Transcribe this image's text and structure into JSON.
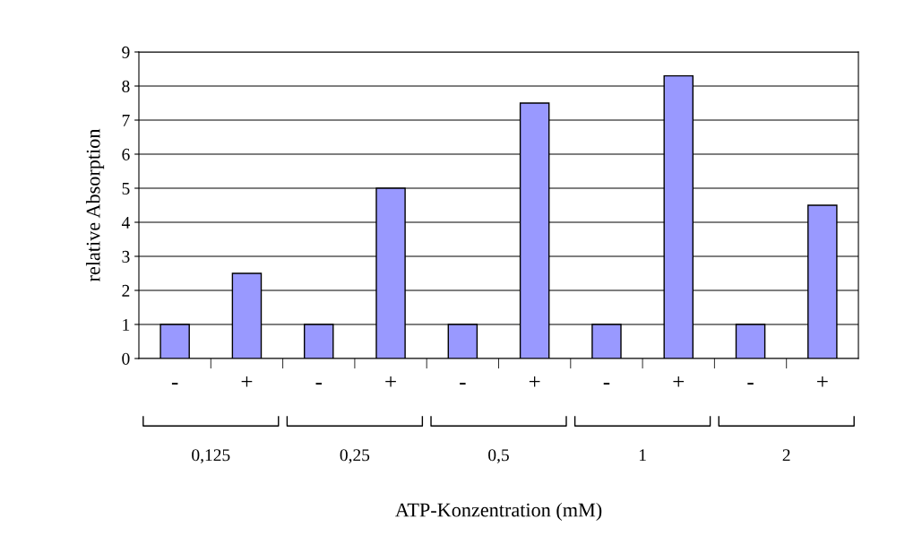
{
  "chart_data": {
    "type": "bar",
    "ylabel": "relative Absorption",
    "categories": [
      "-",
      "+",
      "-",
      "+",
      "-",
      "+",
      "-",
      "+",
      "-",
      "+"
    ],
    "values": [
      1,
      2.5,
      1,
      5,
      1,
      7.5,
      1,
      8.3,
      1,
      4.5
    ],
    "color": "#9999ff",
    "ylim": [
      0,
      9
    ],
    "yticks": [
      0,
      1,
      2,
      3,
      4,
      5,
      6,
      7,
      8,
      9
    ],
    "grid": "y",
    "legend": false,
    "annotations": [
      "0,125",
      "0,25",
      "0,5",
      "1",
      "2",
      "ATP-Konzentration (mM)"
    ]
  }
}
